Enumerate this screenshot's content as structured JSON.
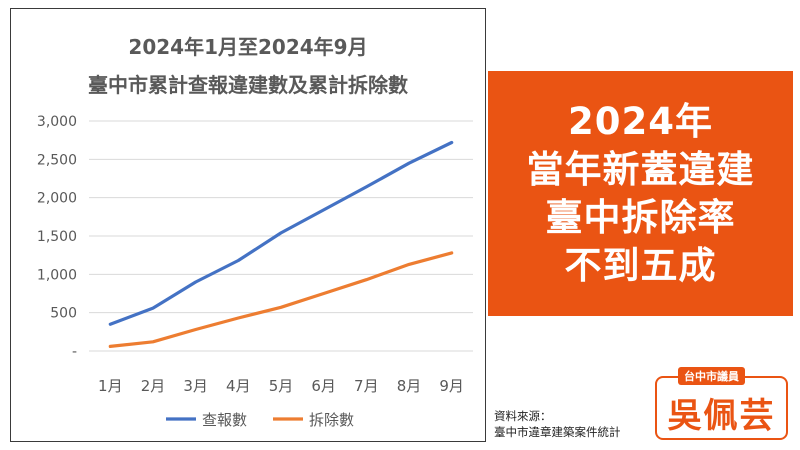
{
  "chart_data": {
    "type": "line",
    "title": "2024年1月至2024年9月",
    "subtitle": "臺中市累計查報違建數及累計拆除數",
    "categories": [
      "1月",
      "2月",
      "3月",
      "4月",
      "5月",
      "6月",
      "7月",
      "8月",
      "9月"
    ],
    "y_ticks": [
      "3,000",
      "2,500",
      "2,000",
      "1,500",
      "1,000",
      "500",
      "-"
    ],
    "ylim": [
      0,
      3000
    ],
    "grid": true,
    "legend_position": "bottom",
    "series": [
      {
        "name": "查報數",
        "color": "#4472c4",
        "values": [
          350,
          560,
          900,
          1180,
          1540,
          1840,
          2140,
          2450,
          2720
        ]
      },
      {
        "name": "拆除數",
        "color": "#ed7d31",
        "values": [
          60,
          120,
          280,
          430,
          570,
          750,
          930,
          1130,
          1280
        ]
      }
    ]
  },
  "headline": {
    "lines": [
      "2024年",
      "當年新蓋違建",
      "臺中拆除率",
      "不到五成"
    ],
    "background": "#ea5413"
  },
  "source": {
    "label": "資料來源：",
    "text": "臺中市違章建築案件統計"
  },
  "badge": {
    "title": "台中市議員",
    "name": "吳佩芸",
    "color": "#ea5413"
  }
}
